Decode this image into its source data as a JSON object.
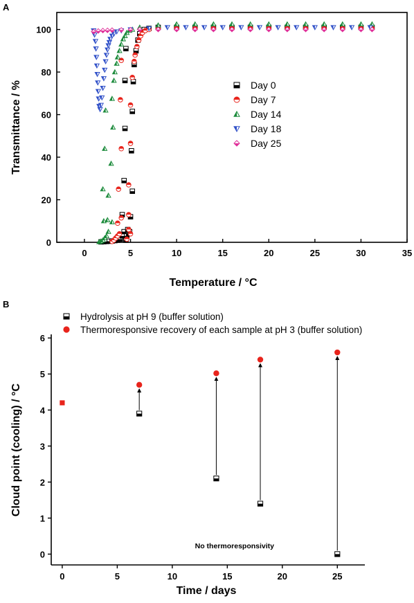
{
  "panels": {
    "a_label": "A",
    "b_label": "B"
  },
  "colors": {
    "day0": "#000000",
    "day7": "#e8241c",
    "day14": "#1a8a3a",
    "day18": "#3050c8",
    "day25": "#e0309a",
    "recovery": "#e8241c"
  },
  "chart_data": [
    {
      "type": "scatter",
      "title": "",
      "xlabel": "Temperature / °C",
      "ylabel": "Transmittance / %",
      "xlim": [
        -3,
        35
      ],
      "ylim": [
        0,
        108
      ],
      "xticks": [
        "0",
        "5",
        "10",
        "15",
        "20",
        "25",
        "30",
        "35"
      ],
      "yticks": [
        "0",
        "20",
        "40",
        "60",
        "80",
        "100"
      ],
      "legend_position": "center-right",
      "series": [
        {
          "name": "Day 0",
          "marker": "half-square",
          "points": [
            [
              1.8,
              0.2
            ],
            [
              2.1,
              0.3
            ],
            [
              2.4,
              0.4
            ],
            [
              2.7,
              0.5
            ],
            [
              3.0,
              0.6
            ],
            [
              3.3,
              0.8
            ],
            [
              3.6,
              1.0
            ],
            [
              3.9,
              1.5
            ],
            [
              4.1,
              3.0
            ],
            [
              4.3,
              5.0
            ],
            [
              4.5,
              1.0
            ],
            [
              4.6,
              3.0
            ],
            [
              4.7,
              6.0
            ],
            [
              4.8,
              4.0
            ],
            [
              4.9,
              5.0
            ],
            [
              5.0,
              12.0
            ],
            [
              4.1,
              13.0
            ],
            [
              4.3,
              29.0
            ],
            [
              5.2,
              24.0
            ],
            [
              5.1,
              43.0
            ],
            [
              4.4,
              53.5
            ],
            [
              5.2,
              61.5
            ],
            [
              4.4,
              76.0
            ],
            [
              5.3,
              75.5
            ],
            [
              4.5,
              91.0
            ],
            [
              5.4,
              83.5
            ],
            [
              5.6,
              90.0
            ],
            [
              5.8,
              95.0
            ],
            [
              6.0,
              98.0
            ],
            [
              6.5,
              100.0
            ],
            [
              7.0,
              100.5
            ],
            [
              8,
              101
            ],
            [
              10,
              101
            ],
            [
              12,
              101
            ],
            [
              14,
              101
            ],
            [
              16,
              101
            ],
            [
              18,
              101
            ],
            [
              20,
              101
            ],
            [
              22,
              101
            ],
            [
              24,
              101
            ],
            [
              26,
              101
            ],
            [
              28,
              101
            ],
            [
              30,
              101
            ],
            [
              31.2,
              101
            ]
          ]
        },
        {
          "name": "Day 7",
          "marker": "half-circle",
          "points": [
            [
              3.0,
              0.4
            ],
            [
              3.2,
              1.0
            ],
            [
              3.4,
              2.0
            ],
            [
              3.6,
              3.0
            ],
            [
              3.8,
              4.0
            ],
            [
              3.6,
              9.0
            ],
            [
              4.0,
              11.5
            ],
            [
              4.8,
              13.0
            ],
            [
              4.6,
              1.5
            ],
            [
              4.8,
              6.0
            ],
            [
              5.0,
              4.0
            ],
            [
              3.7,
              25.0
            ],
            [
              4.8,
              27.0
            ],
            [
              4.0,
              44.0
            ],
            [
              5.0,
              46.5
            ],
            [
              3.9,
              67.0
            ],
            [
              5.0,
              64.5
            ],
            [
              4.0,
              85.5
            ],
            [
              5.2,
              77.5
            ],
            [
              5.4,
              85.0
            ],
            [
              5.5,
              88.0
            ],
            [
              5.7,
              92.0
            ],
            [
              5.9,
              95.0
            ],
            [
              6.1,
              97.0
            ],
            [
              6.3,
              98.5
            ],
            [
              6.6,
              99.5
            ],
            [
              7.0,
              100
            ],
            [
              8,
              100.5
            ],
            [
              10,
              100.5
            ],
            [
              12,
              100.5
            ],
            [
              14,
              100.5
            ],
            [
              16,
              100.5
            ],
            [
              18,
              100.5
            ],
            [
              20,
              100.5
            ],
            [
              22,
              100.5
            ],
            [
              24,
              100.5
            ],
            [
              26,
              100.5
            ],
            [
              28,
              100.5
            ],
            [
              30,
              100.5
            ],
            [
              31.2,
              100.5
            ]
          ]
        },
        {
          "name": "Day 14",
          "marker": "half-triangle",
          "points": [
            [
              1.6,
              0.2
            ],
            [
              1.8,
              0.5
            ],
            [
              2.0,
              1.0
            ],
            [
              2.2,
              2.0
            ],
            [
              2.4,
              3.0
            ],
            [
              2.6,
              5.0
            ],
            [
              2.1,
              10.0
            ],
            [
              2.5,
              10.5
            ],
            [
              3.0,
              9.5
            ],
            [
              2.9,
              37.0
            ],
            [
              2.0,
              25.0
            ],
            [
              2.6,
              22.0
            ],
            [
              2.2,
              44.0
            ],
            [
              3.1,
              54.0
            ],
            [
              2.3,
              62.0
            ],
            [
              3.0,
              67.5
            ],
            [
              3.2,
              76.0
            ],
            [
              3.3,
              80.0
            ],
            [
              3.5,
              84.0
            ],
            [
              3.6,
              87.0
            ],
            [
              3.8,
              90.0
            ],
            [
              4.0,
              93.0
            ],
            [
              4.2,
              95.5
            ],
            [
              4.4,
              97.0
            ],
            [
              4.6,
              98.5
            ],
            [
              4.9,
              99.5
            ],
            [
              5.2,
              100
            ],
            [
              6,
              101
            ],
            [
              8,
              102
            ],
            [
              10,
              102.5
            ],
            [
              12,
              102.5
            ],
            [
              14,
              102.5
            ],
            [
              16,
              102.5
            ],
            [
              18,
              102.5
            ],
            [
              20,
              102.5
            ],
            [
              22,
              102.5
            ],
            [
              24,
              102.5
            ],
            [
              26,
              102.5
            ],
            [
              28,
              102.5
            ],
            [
              30,
              102.5
            ],
            [
              31.2,
              102.5
            ]
          ]
        },
        {
          "name": "Day 18",
          "marker": "half-down-triangle",
          "points": [
            [
              1.0,
              99.5
            ],
            [
              1.1,
              97.5
            ],
            [
              1.2,
              94.5
            ],
            [
              1.25,
              91.0
            ],
            [
              1.3,
              87.0
            ],
            [
              1.35,
              83.0
            ],
            [
              1.4,
              79.0
            ],
            [
              1.45,
              75.0
            ],
            [
              1.5,
              71.0
            ],
            [
              1.55,
              67.5
            ],
            [
              1.6,
              64.0
            ],
            [
              1.7,
              62.5
            ],
            [
              1.8,
              64.5
            ],
            [
              1.9,
              68.0
            ],
            [
              2.0,
              72.5
            ],
            [
              2.1,
              77.0
            ],
            [
              2.2,
              81.0
            ],
            [
              2.3,
              85.0
            ],
            [
              2.4,
              88.0
            ],
            [
              2.5,
              90.5
            ],
            [
              2.6,
              92.5
            ],
            [
              2.7,
              94.0
            ],
            [
              2.8,
              95.5
            ],
            [
              3.0,
              97.0
            ],
            [
              3.2,
              98.0
            ],
            [
              3.5,
              99.0
            ],
            [
              4.0,
              99.5
            ],
            [
              5,
              100
            ],
            [
              7,
              100.5
            ],
            [
              9,
              101
            ],
            [
              11,
              101
            ],
            [
              13,
              101
            ],
            [
              15,
              101
            ],
            [
              17,
              101
            ],
            [
              19,
              101
            ],
            [
              21,
              101
            ],
            [
              23,
              101
            ],
            [
              25,
              101
            ],
            [
              27,
              101
            ],
            [
              29,
              101
            ],
            [
              31,
              101
            ]
          ]
        },
        {
          "name": "Day 25",
          "marker": "half-diamond",
          "points": [
            [
              1.0,
              99.0
            ],
            [
              1.5,
              99.3
            ],
            [
              2.0,
              99.5
            ],
            [
              2.5,
              99.6
            ],
            [
              3.0,
              99.7
            ],
            [
              4,
              99.8
            ],
            [
              5,
              99.9
            ],
            [
              6,
              100
            ],
            [
              8,
              100
            ],
            [
              10,
              100
            ],
            [
              12,
              100
            ],
            [
              14,
              100
            ],
            [
              16,
              100
            ],
            [
              18,
              100
            ],
            [
              20,
              100
            ],
            [
              22,
              100
            ],
            [
              24,
              100
            ],
            [
              26,
              100
            ],
            [
              28,
              100
            ],
            [
              30,
              100
            ],
            [
              31.2,
              100
            ]
          ]
        }
      ]
    },
    {
      "type": "scatter",
      "title": "",
      "xlabel": "Time / days",
      "ylabel": "Cloud point (cooling) / °C",
      "xlim": [
        -1,
        27.5
      ],
      "ylim": [
        -0.3,
        6.1
      ],
      "xticks": [
        "0",
        "5",
        "10",
        "15",
        "20",
        "25"
      ],
      "yticks": [
        "0",
        "1",
        "2",
        "3",
        "4",
        "5",
        "6"
      ],
      "legend_position": "top",
      "series": [
        {
          "name": "Hydrolysis at pH 9 (buffer solution)",
          "marker": "half-square",
          "points": [
            [
              7,
              3.9
            ],
            [
              14,
              2.1
            ],
            [
              18,
              1.4
            ],
            [
              25,
              0.0
            ]
          ]
        },
        {
          "name": "Thermoresponsive recovery of each sample at pH 3 (buffer solution)",
          "marker": "circle",
          "points": [
            [
              7,
              4.7
            ],
            [
              14,
              5.02
            ],
            [
              18,
              5.4
            ],
            [
              25,
              5.6
            ]
          ]
        },
        {
          "marker": "square",
          "points": [
            [
              0,
              4.2
            ]
          ]
        }
      ],
      "arrows": [
        [
          7,
          3.9,
          7,
          4.7
        ],
        [
          14,
          2.1,
          14,
          5.02
        ],
        [
          18,
          1.4,
          18,
          5.4
        ],
        [
          25,
          0.0,
          25,
          5.6
        ]
      ],
      "annotations": [
        {
          "text": "No thermoresponsivity",
          "x": 25,
          "y": 0
        }
      ]
    }
  ]
}
